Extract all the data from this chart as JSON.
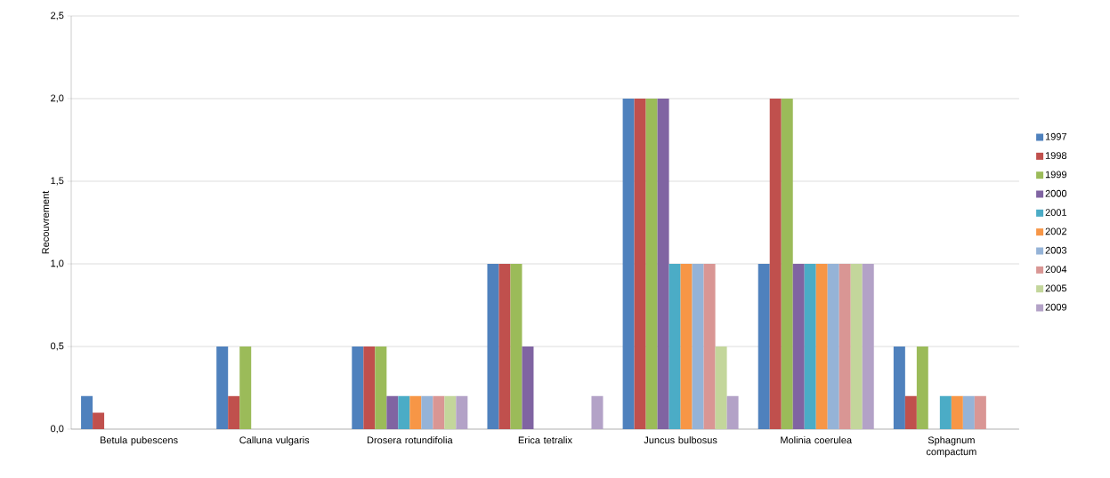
{
  "chart_data": {
    "type": "bar",
    "ylabel": "Recouvrement",
    "categories": [
      "Betula pubescens",
      "Calluna vulgaris",
      "Drosera rotundifolia",
      "Erica tetralix",
      "Juncus bulbosus",
      "Molinia coerulea",
      "Sphagnum compactum"
    ],
    "series": [
      {
        "name": "1997",
        "color": "#4f81bd",
        "values": [
          0.2,
          0.5,
          0.5,
          1.0,
          2.0,
          1.0,
          0.5
        ]
      },
      {
        "name": "1998",
        "color": "#c0504d",
        "values": [
          0.1,
          0.2,
          0.5,
          1.0,
          2.0,
          2.0,
          0.2
        ]
      },
      {
        "name": "1999",
        "color": "#9bbb59",
        "values": [
          null,
          0.5,
          0.5,
          1.0,
          2.0,
          2.0,
          0.5
        ]
      },
      {
        "name": "2000",
        "color": "#8064a2",
        "values": [
          null,
          null,
          0.2,
          0.5,
          2.0,
          1.0,
          null
        ]
      },
      {
        "name": "2001",
        "color": "#4bacc6",
        "values": [
          null,
          null,
          0.2,
          null,
          1.0,
          1.0,
          0.2
        ]
      },
      {
        "name": "2002",
        "color": "#f79646",
        "values": [
          null,
          null,
          0.2,
          null,
          1.0,
          1.0,
          0.2
        ]
      },
      {
        "name": "2003",
        "color": "#95b3d7",
        "values": [
          null,
          null,
          0.2,
          null,
          1.0,
          1.0,
          0.2
        ]
      },
      {
        "name": "2004",
        "color": "#d99694",
        "values": [
          null,
          null,
          0.2,
          null,
          1.0,
          1.0,
          0.2
        ]
      },
      {
        "name": "2005",
        "color": "#c3d69b",
        "values": [
          null,
          null,
          0.2,
          null,
          0.5,
          1.0,
          null
        ]
      },
      {
        "name": "2009",
        "color": "#b3a2c7",
        "values": [
          null,
          null,
          0.2,
          0.2,
          0.2,
          1.0,
          null
        ]
      }
    ],
    "ylim": [
      0,
      2.5
    ],
    "yticks": [
      {
        "value": 0,
        "label": "0,0"
      },
      {
        "value": 0.5,
        "label": "0,5"
      },
      {
        "value": 1.0,
        "label": "1,0"
      },
      {
        "value": 1.5,
        "label": "1,5"
      },
      {
        "value": 2.0,
        "label": "2,0"
      },
      {
        "value": 2.5,
        "label": "2,5"
      }
    ],
    "grid": "y",
    "legend": "right"
  }
}
